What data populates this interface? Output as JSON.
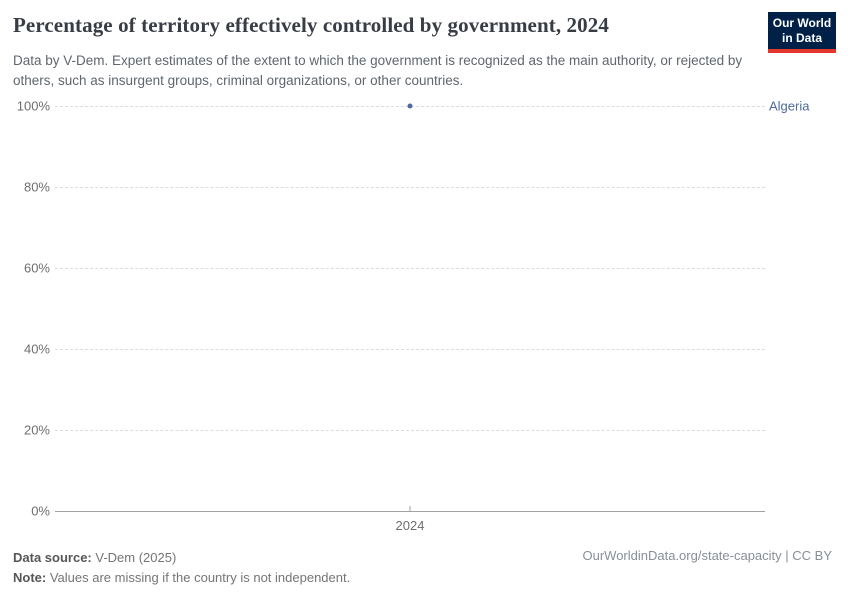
{
  "header": {
    "title": "Percentage of territory effectively controlled by government, 2024",
    "subtitle": "Data by V-Dem. Expert estimates of the extent to which the government is recognized as the main authority, or rejected by others, such as insurgent groups, criminal organizations, or other countries.",
    "logo": {
      "line1": "Our World",
      "line2": "in Data",
      "bg_color": "#002147",
      "stripe_color": "#e5362c"
    }
  },
  "chart_data": {
    "type": "scatter",
    "title": "Percentage of territory effectively controlled by government, 2024",
    "series": [
      {
        "name": "Algeria",
        "points": [
          {
            "x": 2024,
            "y": 100
          }
        ]
      }
    ],
    "x_ticks": [
      "2024"
    ],
    "y_ticks": [
      100,
      80,
      60,
      40,
      20,
      0
    ],
    "y_tick_suffix": "%",
    "ylim": [
      0,
      100
    ],
    "grid": "horizontal-dashed",
    "legend_position": "right-of-point-row",
    "point_color": "#4c6a9c",
    "entity_label": "Algeria",
    "entity_label_color": "#4c6a9c",
    "gridline_color": "#dcdcdc",
    "axis_line_color": "#a1a1a1"
  },
  "footer": {
    "source_label": "Data source:",
    "source_value": " V-Dem (2025)",
    "note_label": "Note:",
    "note_value": " Values are missing if the country is not independent.",
    "link_text": "OurWorldinData.org/state-capacity | CC BY"
  }
}
